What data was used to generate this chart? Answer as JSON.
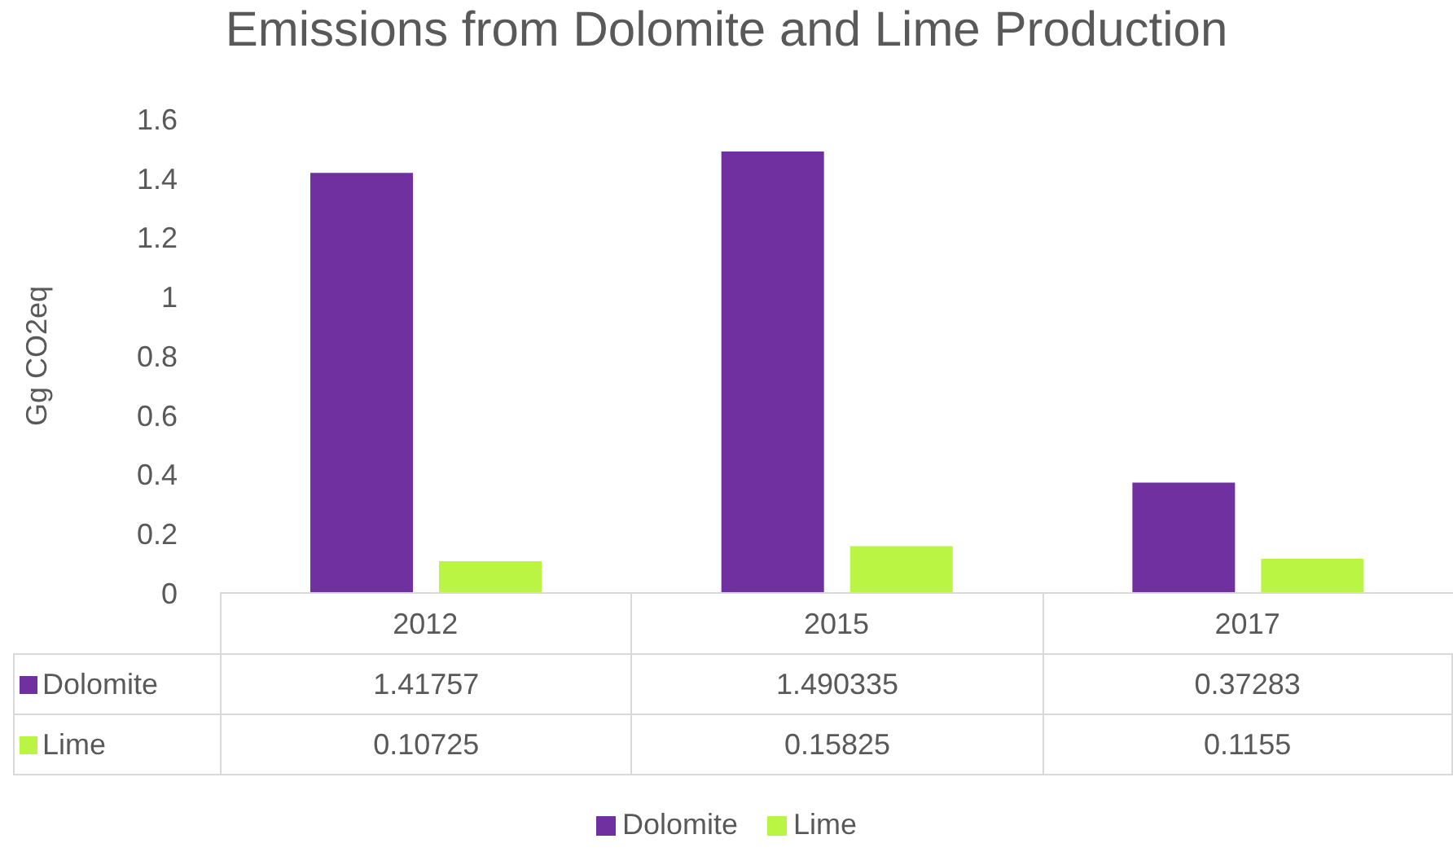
{
  "chart_data": {
    "type": "bar",
    "title": "Emissions from Dolomite and Lime Production",
    "ylabel": "Gg CO2eq",
    "categories": [
      "2012",
      "2015",
      "2017"
    ],
    "series": [
      {
        "name": "Dolomite",
        "color": "#7030a0",
        "values": [
          1.41757,
          1.490335,
          0.37283
        ]
      },
      {
        "name": "Lime",
        "color": "#b9f542",
        "values": [
          0.10725,
          0.15825,
          0.1155
        ]
      }
    ],
    "ylim": [
      0,
      1.6
    ],
    "yticks": [
      0,
      0.2,
      0.4,
      0.6,
      0.8,
      1,
      1.2,
      1.4,
      1.6
    ],
    "legend": "bottom",
    "data_labels": true
  }
}
